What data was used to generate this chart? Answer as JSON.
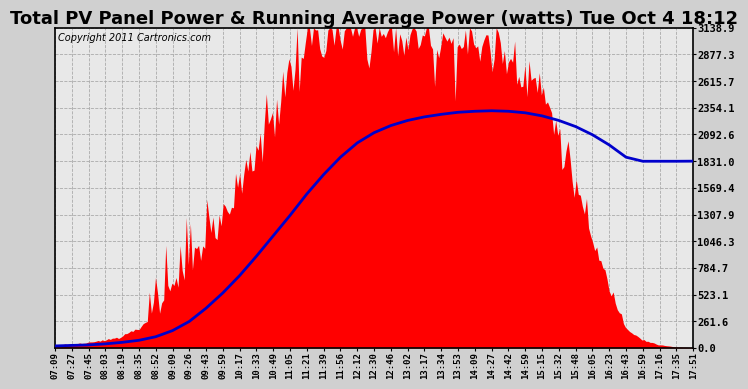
{
  "title": "Total PV Panel Power & Running Average Power (watts) Tue Oct 4 18:12",
  "copyright": "Copyright 2011 Cartronics.com",
  "yticks": [
    0.0,
    261.6,
    523.1,
    784.7,
    1046.3,
    1307.9,
    1569.4,
    1831.0,
    2092.6,
    2354.1,
    2615.7,
    2877.3,
    3138.9
  ],
  "ymax": 3138.9,
  "ymin": 0.0,
  "fig_bg_color": "#d0d0d0",
  "plot_bg_color": "#e8e8e8",
  "grid_color": "#aaaaaa",
  "red_color": "#ff0000",
  "blue_color": "#0000cc",
  "xtick_labels": [
    "07:09",
    "07:27",
    "07:45",
    "08:03",
    "08:19",
    "08:35",
    "08:52",
    "09:09",
    "09:26",
    "09:43",
    "09:59",
    "10:17",
    "10:33",
    "10:49",
    "11:05",
    "11:21",
    "11:39",
    "11:56",
    "12:12",
    "12:30",
    "12:46",
    "13:02",
    "13:17",
    "13:34",
    "13:53",
    "14:09",
    "14:27",
    "14:42",
    "14:59",
    "15:15",
    "15:32",
    "15:48",
    "16:05",
    "16:23",
    "16:43",
    "16:59",
    "17:16",
    "17:35",
    "17:51"
  ],
  "pv_data_y": [
    30,
    40,
    50,
    80,
    120,
    200,
    320,
    500,
    720,
    980,
    1280,
    1600,
    1950,
    2300,
    2700,
    3000,
    3050,
    3080,
    3100,
    3090,
    3070,
    3060,
    3040,
    3020,
    3000,
    2980,
    2960,
    2900,
    2750,
    2500,
    2100,
    1600,
    1050,
    600,
    200,
    80,
    30,
    10,
    5
  ],
  "avg_data_y": [
    20,
    25,
    30,
    40,
    55,
    75,
    110,
    170,
    260,
    390,
    540,
    710,
    900,
    1100,
    1300,
    1510,
    1700,
    1870,
    2010,
    2110,
    2180,
    2230,
    2265,
    2290,
    2310,
    2320,
    2325,
    2320,
    2305,
    2275,
    2230,
    2170,
    2090,
    1990,
    1870,
    1830,
    1830,
    1830,
    1831
  ],
  "title_fontsize": 13,
  "copyright_fontsize": 7,
  "tick_fontsize": 6.5,
  "ytick_fontsize": 7.5
}
